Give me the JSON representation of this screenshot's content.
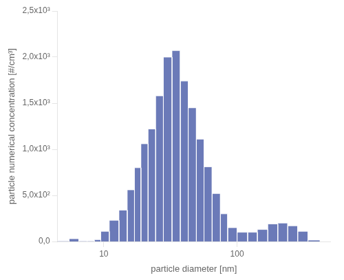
{
  "chart_data": {
    "type": "histogram",
    "xlabel": "particle diameter [nm]",
    "ylabel": "particle numerical concentration [#/cm³]",
    "bins": [
      4.5,
      5.5,
      6.5,
      7.5,
      8.5,
      9.5,
      11.0,
      13.0,
      15.0,
      17.0,
      19.0,
      21.5,
      24.5,
      28.0,
      32.5,
      37.5,
      43.0,
      49.5,
      56.5,
      65.0,
      75.0,
      85.0,
      100.0,
      120.0,
      142.0,
      170.0,
      202.0,
      240.0,
      285.0,
      340.0,
      420.0
    ],
    "values": [
      5,
      30,
      5,
      5,
      20,
      110,
      230,
      340,
      560,
      800,
      1060,
      1220,
      1580,
      2000,
      2070,
      1740,
      1450,
      1110,
      810,
      520,
      300,
      150,
      100,
      100,
      130,
      190,
      200,
      170,
      110,
      15
    ],
    "color": "#6b7ab8",
    "log": "x",
    "xlim": [
      4.5,
      500
    ],
    "ylim": [
      0,
      2500
    ],
    "xticks": [
      10,
      100
    ],
    "yticks": [
      {
        "value": 0,
        "label": "0,0"
      },
      {
        "value": 500,
        "label": "5,0x10²"
      },
      {
        "value": 1000,
        "label": "1,0x10³"
      },
      {
        "value": 1500,
        "label": "1,5x10³"
      },
      {
        "value": 2000,
        "label": "2,0x10³"
      },
      {
        "value": 2500,
        "label": "2,5x10³"
      }
    ],
    "grid": false
  }
}
